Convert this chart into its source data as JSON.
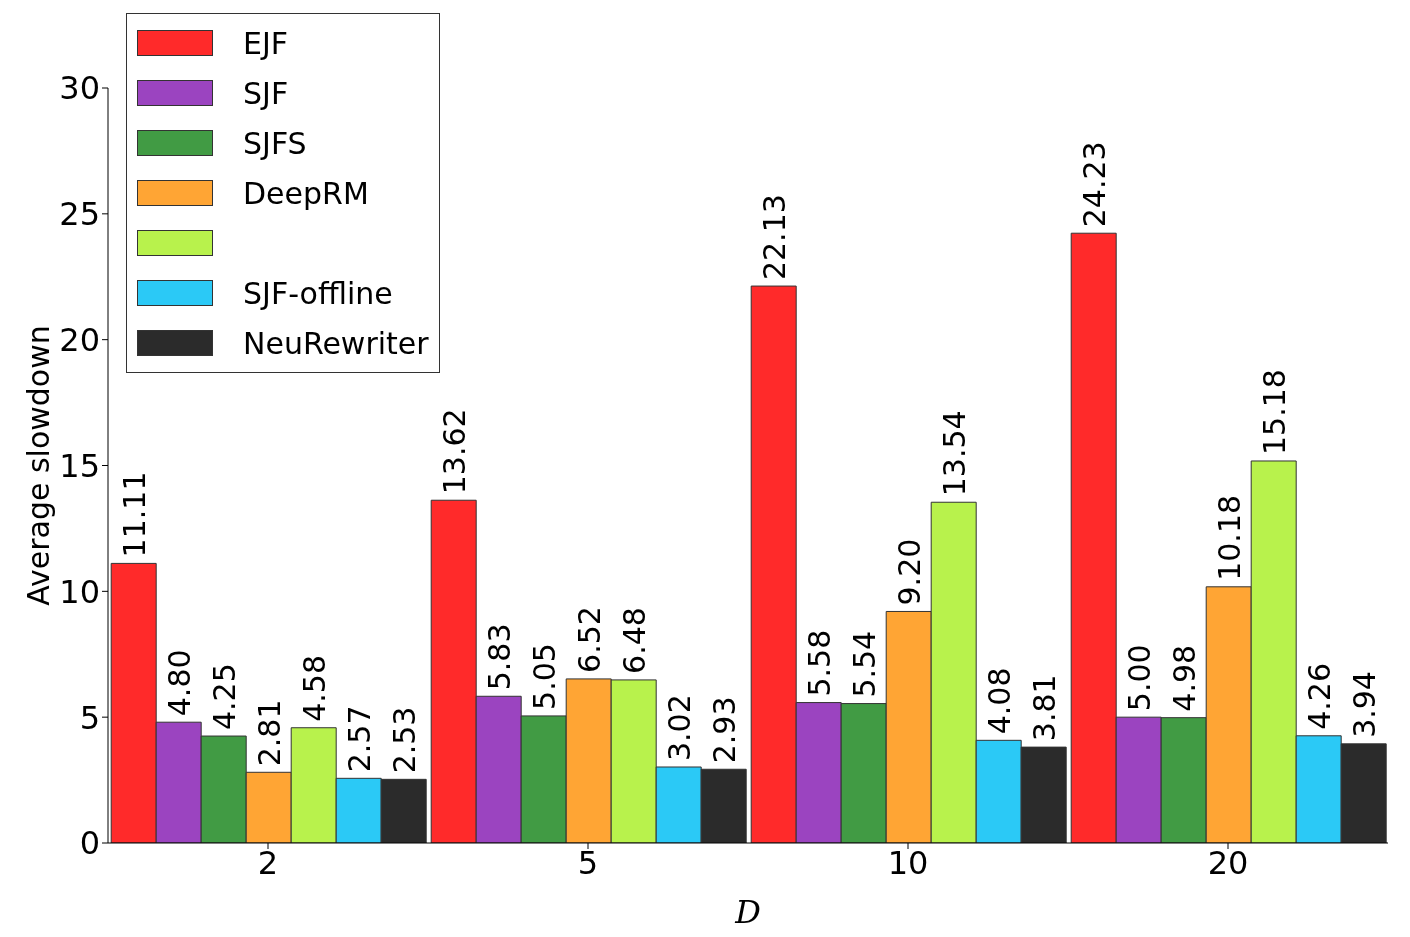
{
  "chart_data": {
    "type": "bar",
    "xlabel": "D",
    "ylabel": "Average slowdown",
    "categories": [
      "2",
      "5",
      "10",
      "20"
    ],
    "series": [
      {
        "name": "EJF",
        "color": "#ff2a2a",
        "values": [
          11.11,
          13.62,
          22.13,
          24.23
        ],
        "value_labels": [
          "11.11",
          "13.62",
          "22.13",
          "24.23"
        ]
      },
      {
        "name": "SJF",
        "color": "#9b44c0",
        "values": [
          4.8,
          5.83,
          5.58,
          5.0
        ],
        "value_labels": [
          "4.80",
          "5.83",
          "5.58",
          "5.00"
        ]
      },
      {
        "name": "SJFS",
        "color": "#419b44",
        "values": [
          4.25,
          5.05,
          5.54,
          4.98
        ],
        "value_labels": [
          "4.25",
          "5.05",
          "5.54",
          "4.98"
        ]
      },
      {
        "name": "DeepRM",
        "color": "#ffa534",
        "values": [
          2.81,
          6.52,
          9.2,
          10.18
        ],
        "value_labels": [
          "2.81",
          "6.52",
          "9.20",
          "10.18"
        ]
      },
      {
        "color": "#b8f24c",
        "values": [
          4.58,
          6.48,
          13.54,
          15.18
        ],
        "value_labels": [
          "4.58",
          "6.48",
          "13.54",
          "15.18"
        ]
      },
      {
        "name": "SJF-offline",
        "color": "#2bc9f6",
        "values": [
          2.57,
          3.02,
          4.08,
          4.26
        ],
        "value_labels": [
          "2.57",
          "3.02",
          "4.08",
          "4.26"
        ]
      },
      {
        "name": "NeuRewriter",
        "color": "#2b2b2b",
        "values": [
          2.53,
          2.93,
          3.81,
          3.94
        ],
        "value_labels": [
          "2.53",
          "2.93",
          "3.81",
          "3.94"
        ]
      }
    ],
    "ylim": [
      0,
      30
    ],
    "yticks": [
      0,
      5,
      10,
      15,
      20,
      25,
      30
    ],
    "grid": false,
    "legend": "top left"
  }
}
